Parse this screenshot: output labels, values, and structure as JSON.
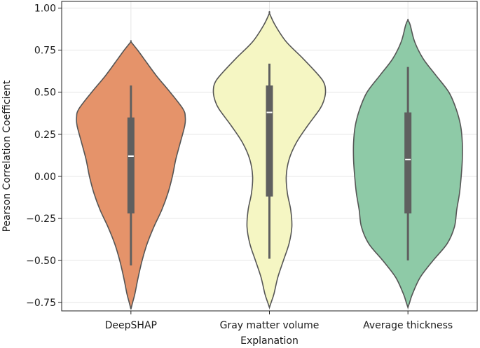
{
  "chart_data": {
    "type": "violin",
    "title": "",
    "xlabel": "Explanation",
    "ylabel": "Pearson Correlation Coefficient",
    "ylim": [
      -0.8,
      1.04
    ],
    "yticks": [
      1.0,
      0.75,
      0.5,
      0.25,
      0.0,
      -0.25,
      -0.5,
      -0.75
    ],
    "ytick_labels": [
      "1.00",
      "0.75",
      "0.50",
      "0.25",
      "0.00",
      "−0.25",
      "−0.50",
      "−0.75"
    ],
    "grid": true,
    "categories": [
      "DeepSHAP",
      "Gray matter volume",
      "Average thickness"
    ],
    "colors": [
      "#e5936a",
      "#f5f6c3",
      "#8ecaa7"
    ],
    "series": [
      {
        "category": "DeepSHAP",
        "median": 0.12,
        "q1": -0.22,
        "q3": 0.35,
        "whisker_low": -0.53,
        "whisker_high": 0.54,
        "kde_min": -0.79,
        "kde_max": 0.8,
        "density": [
          [
            -0.79,
            0.0
          ],
          [
            -0.75,
            0.03
          ],
          [
            -0.7,
            0.07
          ],
          [
            -0.6,
            0.13
          ],
          [
            -0.5,
            0.2
          ],
          [
            -0.4,
            0.29
          ],
          [
            -0.3,
            0.41
          ],
          [
            -0.2,
            0.55
          ],
          [
            -0.1,
            0.66
          ],
          [
            0.0,
            0.74
          ],
          [
            0.1,
            0.8
          ],
          [
            0.2,
            0.88
          ],
          [
            0.3,
            0.96
          ],
          [
            0.35,
            0.97
          ],
          [
            0.4,
            0.93
          ],
          [
            0.5,
            0.7
          ],
          [
            0.6,
            0.45
          ],
          [
            0.7,
            0.23
          ],
          [
            0.75,
            0.12
          ],
          [
            0.8,
            0.0
          ]
        ]
      },
      {
        "category": "Gray matter volume",
        "median": 0.38,
        "q1": -0.12,
        "q3": 0.54,
        "whisker_low": -0.49,
        "whisker_high": 0.67,
        "kde_min": -0.78,
        "kde_max": 0.97,
        "density": [
          [
            -0.78,
            0.0
          ],
          [
            -0.75,
            0.03
          ],
          [
            -0.7,
            0.08
          ],
          [
            -0.6,
            0.15
          ],
          [
            -0.5,
            0.25
          ],
          [
            -0.4,
            0.35
          ],
          [
            -0.3,
            0.4
          ],
          [
            -0.2,
            0.38
          ],
          [
            -0.1,
            0.32
          ],
          [
            0.0,
            0.3
          ],
          [
            0.1,
            0.35
          ],
          [
            0.2,
            0.48
          ],
          [
            0.3,
            0.68
          ],
          [
            0.4,
            0.9
          ],
          [
            0.45,
            0.97
          ],
          [
            0.5,
            1.0
          ],
          [
            0.55,
            0.98
          ],
          [
            0.6,
            0.88
          ],
          [
            0.7,
            0.6
          ],
          [
            0.8,
            0.3
          ],
          [
            0.9,
            0.1
          ],
          [
            0.97,
            0.0
          ]
        ]
      },
      {
        "category": "Average thickness",
        "median": 0.1,
        "q1": -0.22,
        "q3": 0.38,
        "whisker_low": -0.5,
        "whisker_high": 0.65,
        "kde_min": -0.78,
        "kde_max": 0.93,
        "density": [
          [
            -0.78,
            0.0
          ],
          [
            -0.75,
            0.03
          ],
          [
            -0.7,
            0.08
          ],
          [
            -0.6,
            0.22
          ],
          [
            -0.5,
            0.45
          ],
          [
            -0.4,
            0.7
          ],
          [
            -0.3,
            0.83
          ],
          [
            -0.2,
            0.87
          ],
          [
            -0.1,
            0.92
          ],
          [
            0.0,
            0.95
          ],
          [
            0.1,
            0.97
          ],
          [
            0.2,
            0.97
          ],
          [
            0.3,
            0.94
          ],
          [
            0.4,
            0.86
          ],
          [
            0.5,
            0.73
          ],
          [
            0.6,
            0.5
          ],
          [
            0.7,
            0.27
          ],
          [
            0.8,
            0.12
          ],
          [
            0.9,
            0.04
          ],
          [
            0.93,
            0.0
          ]
        ]
      }
    ]
  }
}
